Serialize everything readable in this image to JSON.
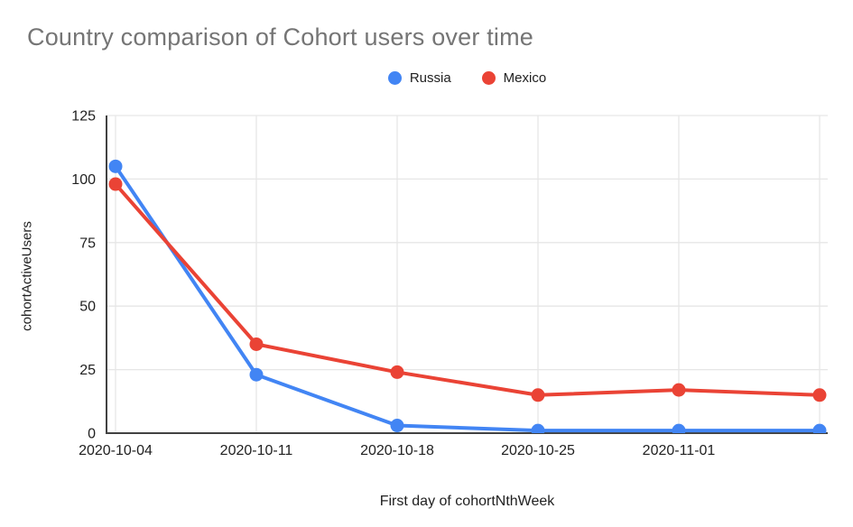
{
  "title": "Country comparison of Cohort users over time",
  "chart_data": {
    "type": "line",
    "title": "Country comparison of Cohort users over time",
    "xlabel": "First day of cohortNthWeek",
    "ylabel": "cohortActiveUsers",
    "categories": [
      "2020-10-04",
      "2020-10-11",
      "2020-10-18",
      "2020-10-25",
      "2020-11-01",
      ""
    ],
    "series": [
      {
        "name": "Russia",
        "color": "#4285F4",
        "values": [
          105,
          23,
          3,
          1,
          1,
          1
        ]
      },
      {
        "name": "Mexico",
        "color": "#EA4335",
        "values": [
          98,
          35,
          24,
          15,
          17,
          15
        ]
      }
    ],
    "ylim": [
      0,
      125
    ],
    "yticks": [
      0,
      25,
      50,
      75,
      100,
      125
    ],
    "grid": true,
    "legend_position": "top-center"
  },
  "colors": {
    "title_text": "#757575",
    "tick_text": "#212121",
    "gridline": "#e6e6e6",
    "axis_line": "#424242",
    "background": "#ffffff"
  }
}
